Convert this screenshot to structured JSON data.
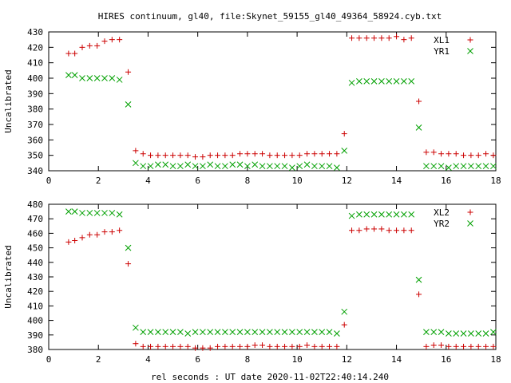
{
  "title": "HIRES continuum, gl40, file:Skynet_59155_gl40_49364_58924.cyb.txt",
  "xlabel": "rel seconds : UT date 2020-11-02T22:40:14.240",
  "colors": {
    "red": "#cc0000",
    "green": "#00a000"
  },
  "chart_data": [
    {
      "type": "scatter",
      "ylabel": "Uncalibrated",
      "xlim": [
        0,
        18
      ],
      "ylim": [
        340,
        430
      ],
      "xticks": [
        0,
        2,
        4,
        6,
        8,
        10,
        12,
        14,
        16,
        18
      ],
      "yticks": [
        340,
        350,
        360,
        370,
        380,
        390,
        400,
        410,
        420,
        430
      ],
      "grid": false,
      "legend_position": "top-right",
      "series": [
        {
          "name": "XL1",
          "marker": "plus",
          "color": "#cc0000",
          "x": [
            0.8,
            1.05,
            1.35,
            1.65,
            1.95,
            2.25,
            2.55,
            2.85,
            3.2,
            3.5,
            3.8,
            4.1,
            4.4,
            4.7,
            5.0,
            5.3,
            5.6,
            5.9,
            6.2,
            6.5,
            6.8,
            7.1,
            7.4,
            7.7,
            8.0,
            8.3,
            8.6,
            8.9,
            9.2,
            9.5,
            9.8,
            10.1,
            10.4,
            10.7,
            11.0,
            11.3,
            11.6,
            11.9,
            12.2,
            12.5,
            12.8,
            13.1,
            13.4,
            13.7,
            14.0,
            14.3,
            14.6,
            14.9,
            15.2,
            15.5,
            15.8,
            16.1,
            16.4,
            16.7,
            17.0,
            17.3,
            17.6,
            17.9
          ],
          "y": [
            416,
            416,
            420,
            421,
            421,
            424,
            425,
            425,
            404,
            353,
            351,
            350,
            350,
            350,
            350,
            350,
            350,
            349,
            349,
            350,
            350,
            350,
            350,
            351,
            351,
            351,
            351,
            350,
            350,
            350,
            350,
            350,
            351,
            351,
            351,
            351,
            351,
            364,
            426,
            426,
            426,
            426,
            426,
            426,
            427,
            425,
            426,
            385,
            352,
            352,
            351,
            351,
            351,
            350,
            350,
            350,
            351,
            350
          ]
        },
        {
          "name": "YR1",
          "marker": "cross",
          "color": "#00a000",
          "x": [
            0.8,
            1.05,
            1.35,
            1.65,
            1.95,
            2.25,
            2.55,
            2.85,
            3.2,
            3.5,
            3.8,
            4.1,
            4.4,
            4.7,
            5.0,
            5.3,
            5.6,
            5.9,
            6.2,
            6.5,
            6.8,
            7.1,
            7.4,
            7.7,
            8.0,
            8.3,
            8.6,
            8.9,
            9.2,
            9.5,
            9.8,
            10.1,
            10.4,
            10.7,
            11.0,
            11.3,
            11.6,
            11.9,
            12.2,
            12.5,
            12.8,
            13.1,
            13.4,
            13.7,
            14.0,
            14.3,
            14.6,
            14.9,
            15.2,
            15.5,
            15.8,
            16.1,
            16.4,
            16.7,
            17.0,
            17.3,
            17.6,
            17.9
          ],
          "y": [
            402,
            402,
            400,
            400,
            400,
            400,
            400,
            399,
            383,
            345,
            343,
            343,
            344,
            344,
            343,
            343,
            344,
            343,
            343,
            344,
            343,
            343,
            344,
            344,
            343,
            344,
            343,
            343,
            343,
            343,
            342,
            343,
            344,
            343,
            343,
            343,
            342,
            353,
            397,
            398,
            398,
            398,
            398,
            398,
            398,
            398,
            398,
            368,
            343,
            343,
            343,
            342,
            343,
            343,
            343,
            343,
            343,
            343
          ]
        }
      ]
    },
    {
      "type": "scatter",
      "ylabel": "Uncalibrated",
      "xlim": [
        0,
        18
      ],
      "ylim": [
        380,
        480
      ],
      "xticks": [
        0,
        2,
        4,
        6,
        8,
        10,
        12,
        14,
        16,
        18
      ],
      "yticks": [
        380,
        390,
        400,
        410,
        420,
        430,
        440,
        450,
        460,
        470,
        480
      ],
      "grid": false,
      "legend_position": "top-right",
      "series": [
        {
          "name": "XL2",
          "marker": "plus",
          "color": "#cc0000",
          "x": [
            0.8,
            1.05,
            1.35,
            1.65,
            1.95,
            2.25,
            2.55,
            2.85,
            3.2,
            3.5,
            3.8,
            4.1,
            4.4,
            4.7,
            5.0,
            5.3,
            5.6,
            5.9,
            6.2,
            6.5,
            6.8,
            7.1,
            7.4,
            7.7,
            8.0,
            8.3,
            8.6,
            8.9,
            9.2,
            9.5,
            9.8,
            10.1,
            10.4,
            10.7,
            11.0,
            11.3,
            11.6,
            11.9,
            12.2,
            12.5,
            12.8,
            13.1,
            13.4,
            13.7,
            14.0,
            14.3,
            14.6,
            14.9,
            15.2,
            15.5,
            15.8,
            16.1,
            16.4,
            16.7,
            17.0,
            17.3,
            17.6,
            17.9
          ],
          "y": [
            454,
            455,
            457,
            459,
            459,
            461,
            461,
            462,
            439,
            384,
            382,
            382,
            382,
            382,
            382,
            382,
            382,
            381,
            381,
            381,
            382,
            382,
            382,
            382,
            382,
            383,
            383,
            382,
            382,
            382,
            382,
            382,
            383,
            382,
            382,
            382,
            382,
            397,
            462,
            462,
            463,
            463,
            463,
            462,
            462,
            462,
            462,
            418,
            382,
            383,
            383,
            382,
            382,
            382,
            382,
            382,
            382,
            382
          ]
        },
        {
          "name": "YR2",
          "marker": "cross",
          "color": "#00a000",
          "x": [
            0.8,
            1.05,
            1.35,
            1.65,
            1.95,
            2.25,
            2.55,
            2.85,
            3.2,
            3.5,
            3.8,
            4.1,
            4.4,
            4.7,
            5.0,
            5.3,
            5.6,
            5.9,
            6.2,
            6.5,
            6.8,
            7.1,
            7.4,
            7.7,
            8.0,
            8.3,
            8.6,
            8.9,
            9.2,
            9.5,
            9.8,
            10.1,
            10.4,
            10.7,
            11.0,
            11.3,
            11.6,
            11.9,
            12.2,
            12.5,
            12.8,
            13.1,
            13.4,
            13.7,
            14.0,
            14.3,
            14.6,
            14.9,
            15.2,
            15.5,
            15.8,
            16.1,
            16.4,
            16.7,
            17.0,
            17.3,
            17.6,
            17.9
          ],
          "y": [
            475,
            475,
            474,
            474,
            474,
            474,
            474,
            473,
            450,
            395,
            392,
            392,
            392,
            392,
            392,
            392,
            391,
            392,
            392,
            392,
            392,
            392,
            392,
            392,
            392,
            392,
            392,
            392,
            392,
            392,
            392,
            392,
            392,
            392,
            392,
            392,
            391,
            406,
            472,
            473,
            473,
            473,
            473,
            473,
            473,
            473,
            473,
            428,
            392,
            392,
            392,
            391,
            391,
            391,
            391,
            391,
            391,
            392
          ]
        }
      ]
    }
  ]
}
